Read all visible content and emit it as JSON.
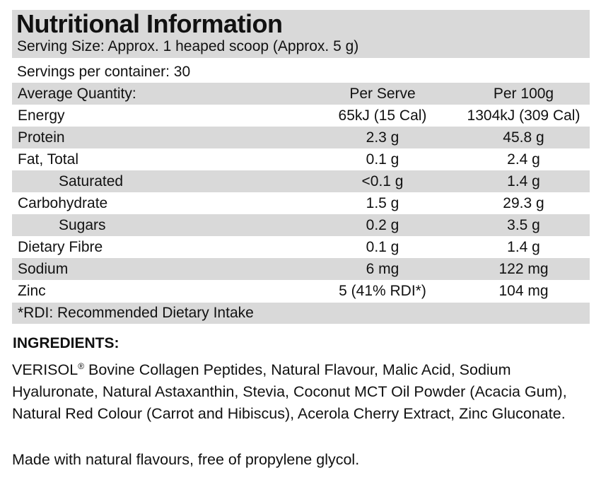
{
  "header": {
    "title": "Nutritional Information",
    "serving_size": "Serving Size: Approx. 1 heaped scoop (Approx. 5 g)",
    "servings_per_container": "Servings per container: 30"
  },
  "table": {
    "columns": [
      "Average Quantity:",
      "Per Serve",
      "Per 100g"
    ],
    "rows": [
      {
        "name": "Energy",
        "per_serve": "65kJ (15 Cal)",
        "per_100g": "1304kJ (309 Cal)"
      },
      {
        "name": "Protein",
        "per_serve": "2.3 g",
        "per_100g": "45.8 g"
      },
      {
        "name": "Fat, Total",
        "per_serve": "0.1 g",
        "per_100g": "2.4 g"
      },
      {
        "name": "Saturated",
        "per_serve": "<0.1 g",
        "per_100g": "1.4 g"
      },
      {
        "name": "Carbohydrate",
        "per_serve": "1.5 g",
        "per_100g": "29.3 g"
      },
      {
        "name": "Sugars",
        "per_serve": "0.2 g",
        "per_100g": "3.5 g"
      },
      {
        "name": "Dietary Fibre",
        "per_serve": "0.1 g",
        "per_100g": "1.4 g"
      },
      {
        "name": "Sodium",
        "per_serve": "6 mg",
        "per_100g": "122 mg"
      },
      {
        "name": "Zinc",
        "per_serve": "5 (41% RDI*)",
        "per_100g": "104 mg"
      }
    ],
    "footnote": "*RDI: Recommended Dietary Intake"
  },
  "ingredients": {
    "heading": "INGREDIENTS:",
    "brand": "VERISOL",
    "brand_mark": "®",
    "text": " Bovine Collagen Peptides, Natural Flavour, Malic Acid, Sodium Hyaluronate, Natural Astaxanthin, Stevia, Coconut MCT Oil Powder (Acacia Gum), Natural Red Colour (Carrot and Hibiscus), Acerola Cherry Extract, Zinc Gluconate."
  },
  "note": "Made with natural flavours, free of propylene glycol.",
  "colors": {
    "shade": "#d9d9d9",
    "text": "#111111"
  }
}
